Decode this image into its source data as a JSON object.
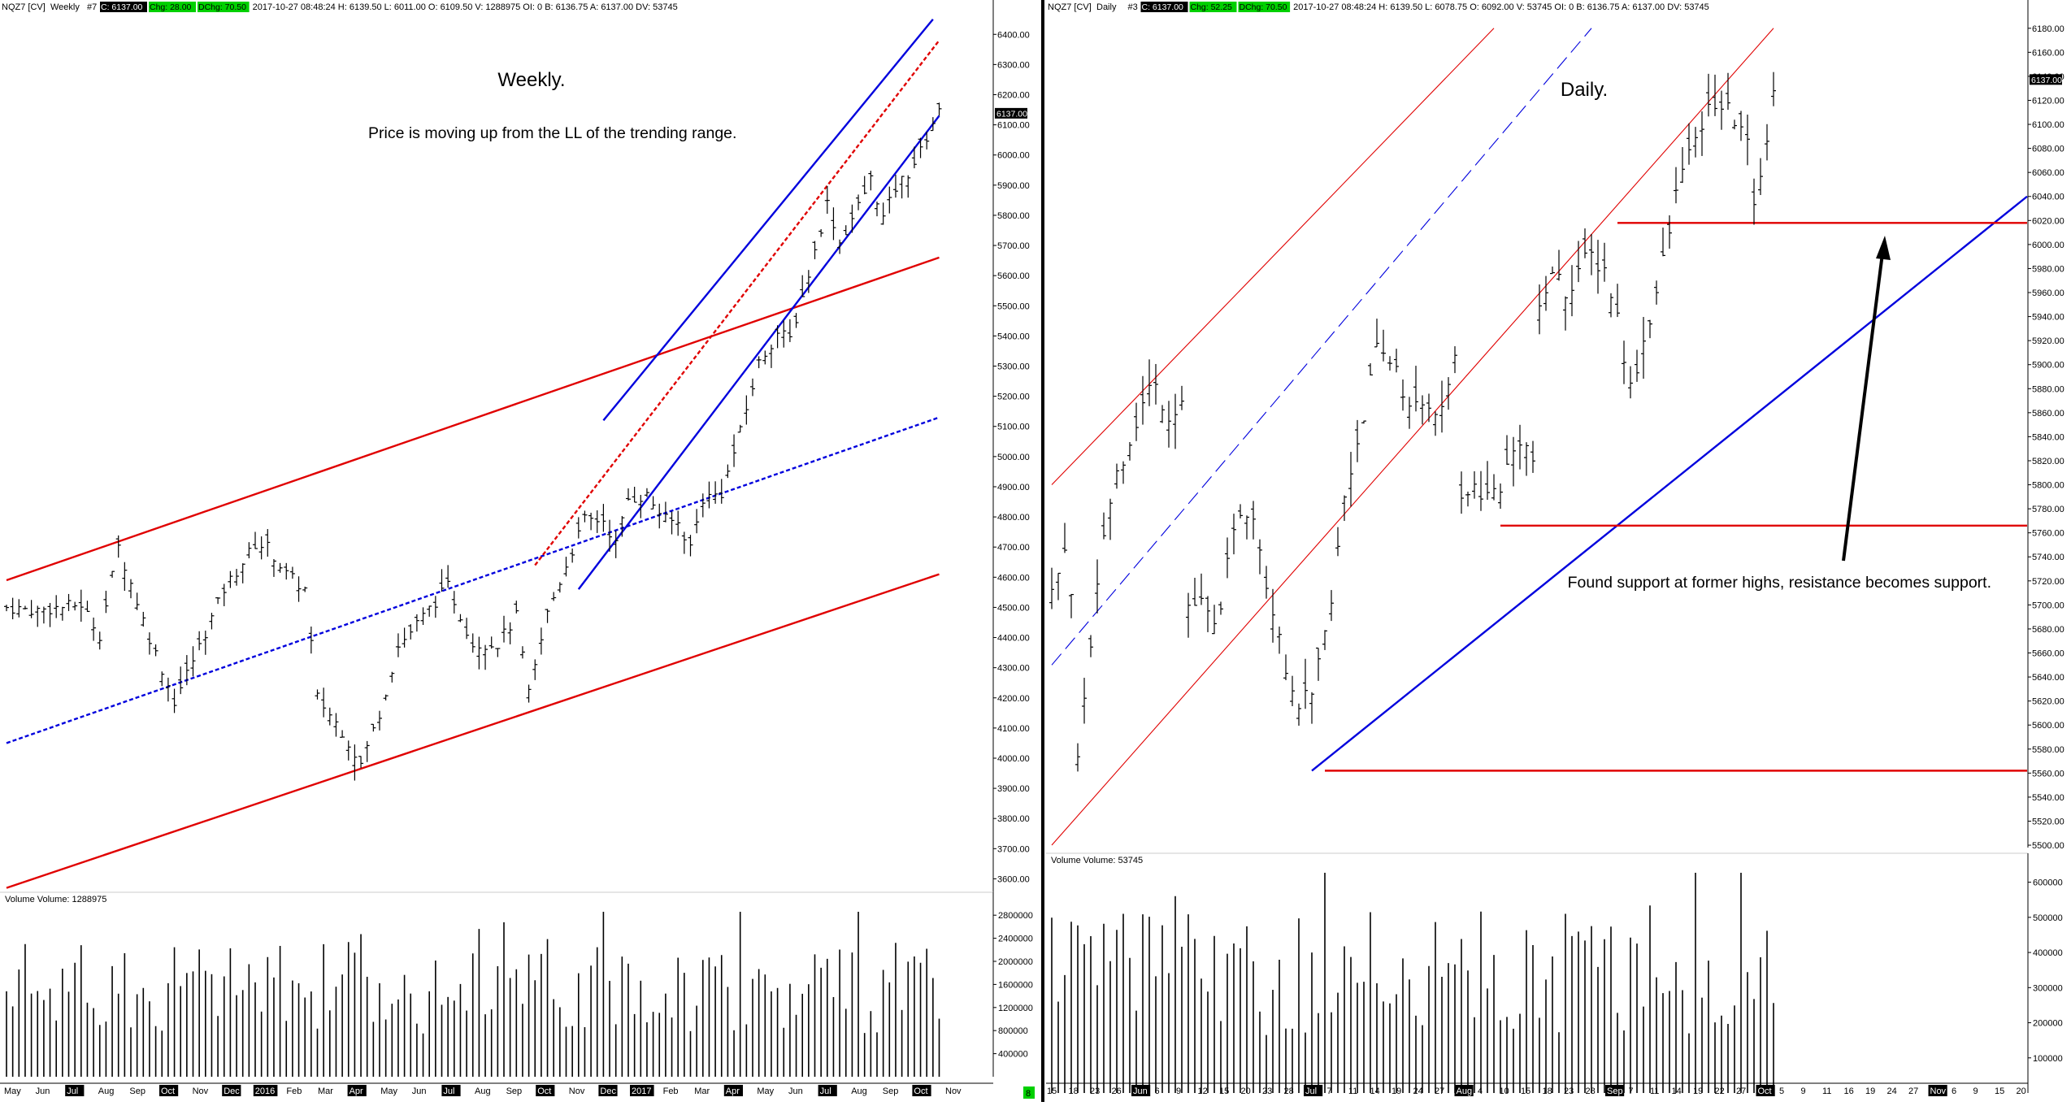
{
  "colors": {
    "up": "#000000",
    "trend_red": "#e00000",
    "trend_blue": "#0000dd",
    "header_black": "#000000",
    "header_green": "#00d000",
    "price_tag": "#000000"
  },
  "left_panel": {
    "symbol": "NQZ7 [CV]",
    "interval": "Weekly",
    "study_id": "#7",
    "header_tags": [
      {
        "text": "C: 6137.00",
        "style": "black"
      },
      {
        "text": "Chg: 28.00",
        "style": "green"
      },
      {
        "text": "DChg: 70.50",
        "style": "green"
      }
    ],
    "header_info": "2017-10-27 08:48:24 H: 6139.50 L: 6011.00 O: 6109.50 V: 1288975 OI: 0 B: 6136.75 A: 6137.00 DV: 53745",
    "annotation_title": "Weekly.",
    "annotation_text": "Price is moving up from the LL of the trending range.",
    "price_tag": "6137.00",
    "volume_label": "Volume  Volume: 1288975",
    "corner_tag": "8"
  },
  "right_panel": {
    "symbol": "NQZ7 [CV]",
    "interval": "Daily",
    "study_id": "#3",
    "header_tags": [
      {
        "text": "C: 6137.00",
        "style": "black"
      },
      {
        "text": "Chg: 52.25",
        "style": "green"
      },
      {
        "text": "DChg: 70.50",
        "style": "green"
      }
    ],
    "header_info": "2017-10-27 08:48:24 H: 6139.50 L: 6078.75 O: 6092.00 V: 53745 OI: 0 B: 6136.75 A: 6137.00 DV: 53745",
    "annotation_title": "Daily.",
    "annotation_text": "Found support at former highs, resistance becomes support.",
    "price_tag": "6137.00",
    "volume_label": "Volume  Volume: 53745"
  },
  "chart_data": [
    {
      "type": "ohlc",
      "title": "Weekly.",
      "x_tick_labels": [
        "May",
        "Jun",
        "Jul",
        "Aug",
        "Sep",
        "Oct",
        "Nov",
        "Dec",
        "2016",
        "Feb",
        "Mar",
        "Apr",
        "May",
        "Jun",
        "Jul",
        "Aug",
        "Sep",
        "Oct",
        "Nov",
        "Dec",
        "2017",
        "Feb",
        "Mar",
        "Apr",
        "May",
        "Jun",
        "Jul",
        "Aug",
        "Sep",
        "Oct",
        "Nov"
      ],
      "highlighted_x_tick_labels": [
        "Jul",
        "Oct",
        "Dec",
        "2016",
        "Jul",
        "Oct",
        "Dec",
        "2017",
        "Apr",
        "Jul",
        "Oct"
      ],
      "y_tick_labels": [
        "6400.00",
        "6300.00",
        "6200.00",
        "6100.00",
        "6000.00",
        "5900.00",
        "5800.00",
        "5700.00",
        "5600.00",
        "5500.00",
        "5400.00",
        "5300.00",
        "5200.00",
        "5100.00",
        "5000.00",
        "4900.00",
        "4800.00",
        "4700.00",
        "4600.00",
        "4500.00",
        "4400.00",
        "4300.00",
        "4200.00",
        "4100.00",
        "4000.00",
        "3900.00",
        "3800.00",
        "3700.00",
        "3600.00"
      ],
      "ylim": [
        3550,
        6460
      ],
      "close_path": [
        [
          0,
          4500
        ],
        [
          5,
          4490
        ],
        [
          12,
          4510
        ],
        [
          15,
          4410
        ],
        [
          18,
          4700
        ],
        [
          23,
          4400
        ],
        [
          27,
          4190
        ],
        [
          31,
          4370
        ],
        [
          35,
          4560
        ],
        [
          40,
          4710
        ],
        [
          42,
          4700
        ],
        [
          45,
          4610
        ],
        [
          48,
          4560
        ],
        [
          50,
          4200
        ],
        [
          54,
          4090
        ],
        [
          57,
          3980
        ],
        [
          60,
          4150
        ],
        [
          63,
          4370
        ],
        [
          67,
          4470
        ],
        [
          71,
          4570
        ],
        [
          75,
          4380
        ],
        [
          79,
          4380
        ],
        [
          82,
          4470
        ],
        [
          84,
          4210
        ],
        [
          87,
          4480
        ],
        [
          90,
          4640
        ],
        [
          93,
          4790
        ],
        [
          96,
          4790
        ],
        [
          98,
          4710
        ],
        [
          100,
          4860
        ],
        [
          103,
          4870
        ],
        [
          106,
          4790
        ],
        [
          108,
          4780
        ],
        [
          110,
          4700
        ],
        [
          112,
          4860
        ],
        [
          115,
          4880
        ],
        [
          118,
          5080
        ],
        [
          121,
          5310
        ],
        [
          124,
          5410
        ],
        [
          126,
          5390
        ],
        [
          128,
          5530
        ],
        [
          130,
          5680
        ],
        [
          132,
          5840
        ],
        [
          134,
          5710
        ],
        [
          137,
          5830
        ],
        [
          139,
          5920
        ],
        [
          141,
          5790
        ],
        [
          143,
          5890
        ],
        [
          145,
          5940
        ],
        [
          147,
          6010
        ],
        [
          149,
          6110
        ],
        [
          150,
          6137
        ]
      ],
      "volume_label": "Volume  Volume: 1288975",
      "volume_y_tick_labels": [
        "2800000",
        "2400000",
        "2000000",
        "1600000",
        "1200000",
        "800000",
        "400000"
      ],
      "volume_ylim": [
        0,
        3000000
      ],
      "trend_lines": [
        {
          "color": "red",
          "style": "solid",
          "points": [
            [
              0,
              4590
            ],
            [
              150,
              5660
            ]
          ]
        },
        {
          "color": "red",
          "style": "solid",
          "points": [
            [
              0,
              3570
            ],
            [
              150,
              4610
            ]
          ]
        },
        {
          "color": "blue",
          "style": "dashed",
          "points": [
            [
              0,
              4050
            ],
            [
              150,
              5130
            ]
          ]
        },
        {
          "color": "red",
          "style": "dashed",
          "points": [
            [
              85,
              4640
            ],
            [
              150,
              6380
            ]
          ]
        },
        {
          "color": "blue",
          "style": "solid",
          "points": [
            [
              96,
              5120
            ],
            [
              149,
              6450
            ]
          ]
        },
        {
          "color": "blue",
          "style": "solid",
          "points": [
            [
              92,
              4560
            ],
            [
              150,
              6130
            ]
          ]
        }
      ]
    },
    {
      "type": "ohlc",
      "title": "Daily.",
      "x_tick_labels": [
        "15",
        "18",
        "23",
        "26",
        "Jun",
        "6",
        "9",
        "12",
        "15",
        "20",
        "23",
        "28",
        "Jul",
        "7",
        "11",
        "14",
        "19",
        "24",
        "27",
        "Aug",
        "4",
        "10",
        "15",
        "18",
        "23",
        "28",
        "Sep",
        "7",
        "11",
        "14",
        "19",
        "22",
        "27",
        "Oct",
        "5",
        "9",
        "11",
        "16",
        "19",
        "24",
        "27",
        "Nov",
        "6",
        "9",
        "15",
        "20"
      ],
      "highlighted_x_tick_labels": [
        "Jun",
        "Jul",
        "Aug",
        "Sep",
        "Oct",
        "Nov"
      ],
      "y_tick_labels": [
        "6180.00",
        "6160.00",
        "6140.00",
        "6120.00",
        "6100.00",
        "6080.00",
        "6060.00",
        "6040.00",
        "6020.00",
        "6000.00",
        "5980.00",
        "5960.00",
        "5940.00",
        "5920.00",
        "5900.00",
        "5880.00",
        "5860.00",
        "5840.00",
        "5820.00",
        "5800.00",
        "5780.00",
        "5760.00",
        "5740.00",
        "5720.00",
        "5700.00",
        "5680.00",
        "5660.00",
        "5640.00",
        "5620.00",
        "5600.00",
        "5580.00",
        "5560.00",
        "5540.00",
        "5520.00",
        "5500.00"
      ],
      "ylim": [
        5498,
        6190
      ],
      "close_path": [
        [
          0,
          5720
        ],
        [
          2,
          5740
        ],
        [
          3,
          5700
        ],
        [
          4,
          5580
        ],
        [
          6,
          5660
        ],
        [
          8,
          5760
        ],
        [
          10,
          5810
        ],
        [
          12,
          5840
        ],
        [
          15,
          5880
        ],
        [
          16,
          5880
        ],
        [
          18,
          5860
        ],
        [
          20,
          5870
        ],
        [
          21,
          5700
        ],
        [
          23,
          5700
        ],
        [
          25,
          5680
        ],
        [
          27,
          5730
        ],
        [
          29,
          5780
        ],
        [
          31,
          5780
        ],
        [
          33,
          5720
        ],
        [
          35,
          5680
        ],
        [
          37,
          5620
        ],
        [
          40,
          5620
        ],
        [
          43,
          5700
        ],
        [
          45,
          5790
        ],
        [
          48,
          5860
        ],
        [
          50,
          5910
        ],
        [
          53,
          5900
        ],
        [
          55,
          5860
        ],
        [
          58,
          5870
        ],
        [
          60,
          5860
        ],
        [
          62,
          5910
        ],
        [
          63,
          5780
        ],
        [
          65,
          5800
        ],
        [
          67,
          5790
        ],
        [
          69,
          5800
        ],
        [
          72,
          5840
        ],
        [
          74,
          5820
        ],
        [
          75,
          5940
        ],
        [
          77,
          5980
        ],
        [
          79,
          5960
        ],
        [
          81,
          5980
        ],
        [
          83,
          5990
        ],
        [
          85,
          5980
        ],
        [
          87,
          5940
        ],
        [
          89,
          5880
        ],
        [
          91,
          5920
        ],
        [
          93,
          5960
        ],
        [
          95,
          6010
        ],
        [
          97,
          6070
        ],
        [
          99,
          6080
        ],
        [
          100,
          6100
        ],
        [
          102,
          6120
        ],
        [
          104,
          6110
        ],
        [
          106,
          6100
        ],
        [
          107,
          6080
        ],
        [
          108,
          6040
        ],
        [
          110,
          6080
        ],
        [
          111,
          6137
        ]
      ],
      "volume_label": "Volume  Volume: 53745",
      "volume_y_tick_labels": [
        "600000",
        "500000",
        "400000",
        "300000",
        "200000",
        "100000"
      ],
      "volume_ylim": [
        0,
        650000
      ],
      "trend_lines": [
        {
          "color": "red",
          "style": "thin",
          "points": [
            [
              0,
              5800
            ],
            [
              68,
              6180
            ]
          ]
        },
        {
          "color": "red",
          "style": "thin",
          "points": [
            [
              0,
              5500
            ],
            [
              111,
              6180
            ]
          ]
        },
        {
          "color": "blue",
          "style": "long-dash",
          "points": [
            [
              0,
              5650
            ],
            [
              83,
              6180
            ]
          ]
        },
        {
          "color": "blue",
          "style": "solid",
          "points": [
            [
              40,
              5562
            ],
            [
              150,
              6040
            ]
          ]
        },
        {
          "color": "red",
          "style": "solid",
          "points": [
            [
              42,
              5562
            ],
            [
              150,
              5562
            ]
          ]
        },
        {
          "color": "red",
          "style": "solid",
          "points": [
            [
              69,
              5766
            ],
            [
              150,
              5766
            ]
          ]
        },
        {
          "color": "red",
          "style": "solid",
          "points": [
            [
              87,
              6018
            ],
            [
              150,
              6018
            ]
          ]
        }
      ]
    }
  ]
}
